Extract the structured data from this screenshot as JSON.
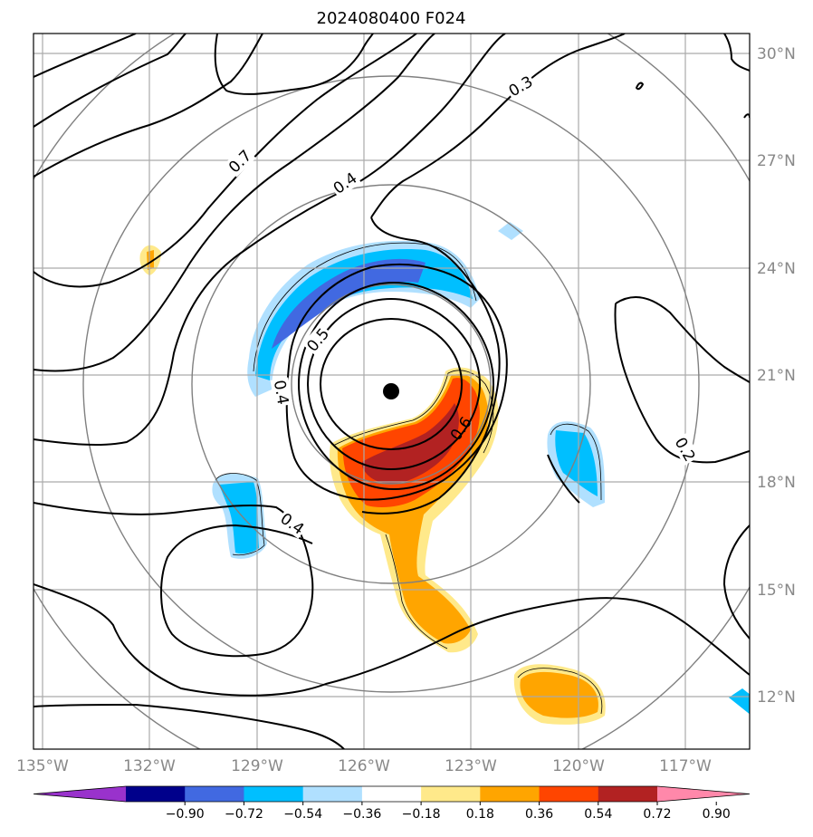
{
  "title": "2024080400 F024",
  "lon_ticks": [
    "135°W",
    "132°W",
    "129°W",
    "126°W",
    "123°W",
    "120°W",
    "117°W"
  ],
  "lat_ticks": [
    "30°N",
    "27°N",
    "24°N",
    "21°N",
    "18°N",
    "15°N",
    "12°N"
  ],
  "colorbar": {
    "ticks": [
      "−0.90",
      "−0.72",
      "−0.54",
      "−0.36",
      "−0.18",
      "0.18",
      "0.36",
      "0.54",
      "0.72",
      "0.90"
    ],
    "colors": [
      "#9932cc",
      "#00008b",
      "#4169e1",
      "#00bfff",
      "#b0e0ff",
      "#ffffff",
      "#ffe98a",
      "#ffa500",
      "#ff4500",
      "#b22222",
      "#ff88aa"
    ]
  },
  "contour_labels": [
    "0.3",
    "0.7",
    "0.4",
    "0.5",
    "0.4",
    "0.6",
    "0.2",
    "0.4"
  ],
  "storm_center": {
    "lon": -125.0,
    "lat": 20.5
  },
  "map_extent": {
    "lon_min": -135.2,
    "lon_max": -115.2,
    "lat_min": 10.5,
    "lat_max": 30.5
  }
}
